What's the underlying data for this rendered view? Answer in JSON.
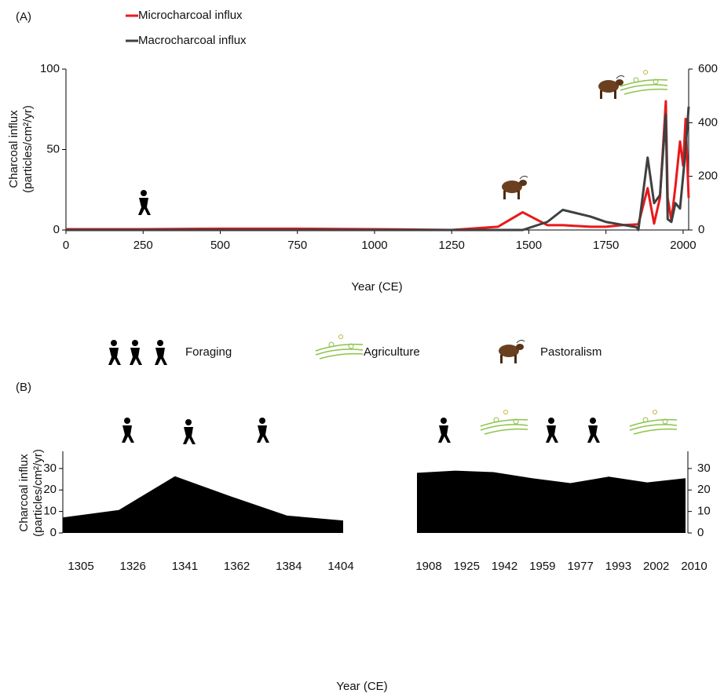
{
  "chart_data": [
    {
      "type": "line",
      "title": "(A)",
      "xlabel": "Year (CE)",
      "ylabel": [
        "Charcoal influx",
        "(particles/cm²/yr)"
      ],
      "x": [
        0,
        250,
        500,
        750,
        1000,
        1250,
        1400,
        1480,
        1560,
        1610,
        1700,
        1750,
        1800,
        1850,
        1855,
        1885,
        1906,
        1925,
        1944,
        1950,
        1962,
        1975,
        1990,
        2000,
        2008,
        2018
      ],
      "series": [
        {
          "name": "Microcharcoal influx",
          "color": "#e8191b",
          "values": [
            0.5,
            0.5,
            0.8,
            0.8,
            0.5,
            0,
            2,
            11,
            3,
            3,
            2,
            2,
            3,
            3.5,
            3.5,
            26,
            4,
            20,
            80,
            20,
            6,
            27,
            55,
            40,
            69,
            20
          ]
        },
        {
          "name": "Macrocharcoal influx",
          "color": "#404040",
          "axis": "y2",
          "values": [
            0,
            0,
            0,
            0,
            0,
            0,
            0,
            0,
            30,
            75,
            50,
            30,
            20,
            10,
            0,
            270,
            100,
            130,
            430,
            40,
            30,
            100,
            80,
            200,
            300,
            460
          ]
        }
      ],
      "xlim": [
        0,
        2018
      ],
      "xticks": [
        0,
        250,
        500,
        750,
        1000,
        1250,
        1500,
        1750,
        2000
      ],
      "ylim": [
        0,
        100
      ],
      "yticks": [
        0,
        50,
        100
      ],
      "y2lim": [
        0,
        600
      ],
      "y2ticks": [
        0,
        200,
        400,
        600
      ],
      "annotations": [
        "Foraging",
        "Agriculture",
        "Pastoralism"
      ]
    },
    {
      "type": "area",
      "title": "(B)",
      "ylabel": [
        "Charcoal influx",
        "(particles/cm²/yr)"
      ],
      "categories": [
        "1305",
        "1326",
        "1341",
        "1362",
        "1384",
        "1404"
      ],
      "values": [
        7.2,
        10.7,
        26.4,
        17,
        8.1,
        5.8
      ],
      "color": "#000000",
      "ylim": [
        0,
        38
      ],
      "yticks": [
        0,
        10,
        20,
        30
      ]
    },
    {
      "type": "area",
      "xlabel": "Year (CE)",
      "categories": [
        "1908",
        "1925",
        "1942",
        "1959",
        "1977",
        "1993",
        "2002",
        "2010"
      ],
      "values": [
        28,
        29,
        28.3,
        25.5,
        23.2,
        26.2,
        23.5,
        25.5
      ],
      "color": "#000000",
      "ylim": [
        0,
        38
      ],
      "yticks": [
        0,
        10,
        20,
        30
      ]
    }
  ]
}
